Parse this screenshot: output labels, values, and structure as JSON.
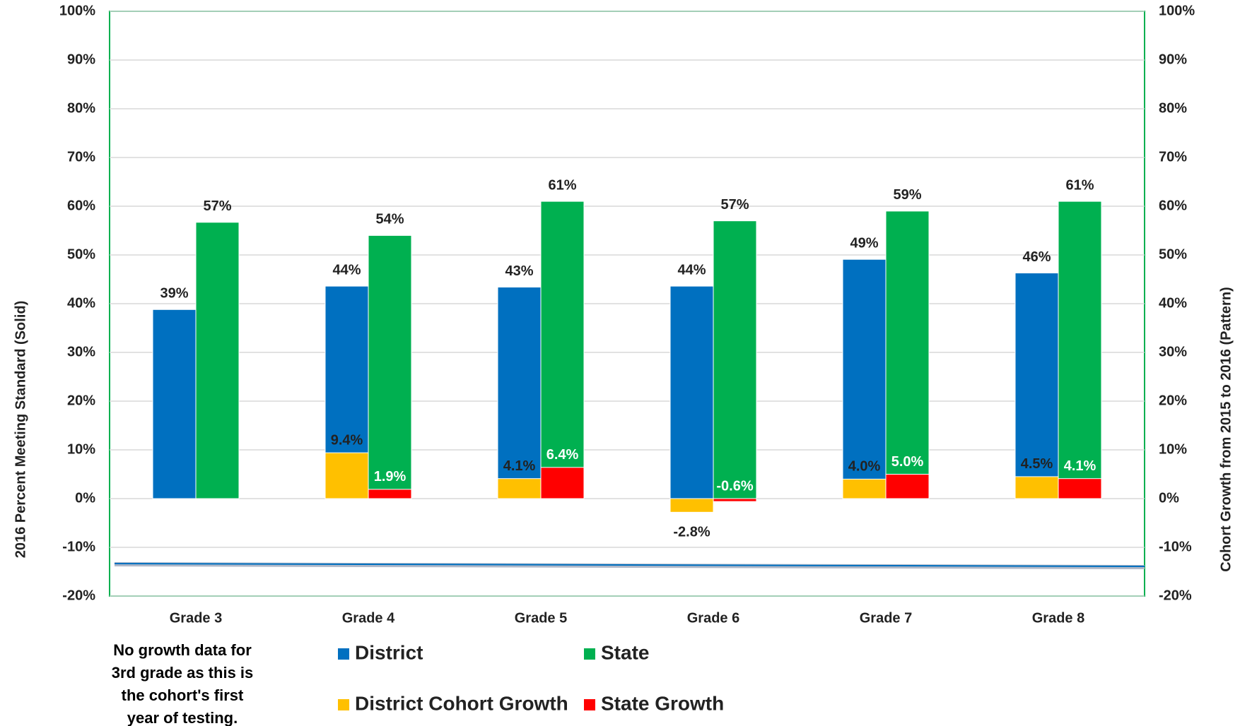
{
  "chart_data": {
    "type": "bar",
    "categories": [
      "Grade 3",
      "Grade 4",
      "Grade 5",
      "Grade 6",
      "Grade 7",
      "Grade 8"
    ],
    "series": [
      {
        "name": "District",
        "color": "#0070c0",
        "values": [
          38.8,
          43.6,
          43.4,
          43.6,
          49.1,
          46.3
        ],
        "value_labels": [
          "39%",
          "44%",
          "43%",
          "44%",
          "49%",
          "46%"
        ]
      },
      {
        "name": "State",
        "color": "#00b050",
        "values": [
          56.7,
          54,
          61,
          57,
          59,
          61
        ],
        "value_labels": [
          "57%",
          "54%",
          "61%",
          "57%",
          "59%",
          "61%"
        ]
      },
      {
        "name": "District Cohort Growth",
        "color": "#ffc000",
        "axis": "y2",
        "values": [
          null,
          9.4,
          4.1,
          -2.8,
          4.0,
          4.5
        ],
        "value_labels": [
          null,
          "9.4%",
          "4.1%",
          "-2.8%",
          "4.0%",
          "4.5%"
        ]
      },
      {
        "name": "State Growth",
        "color": "#ff0000",
        "axis": "y2",
        "values": [
          null,
          1.9,
          6.4,
          -0.6,
          5.0,
          4.1
        ],
        "value_labels": [
          null,
          "1.9%",
          "6.4%",
          "-0.6%",
          "5.0%",
          "4.1%"
        ]
      }
    ],
    "ylabel": "2016 Percent Meeting Standard (Solid)",
    "y2label": "Cohort Growth from 2015 to 2016 (Pattern)",
    "ylim": [
      -20,
      100
    ],
    "yticks": [
      {
        "value": -20,
        "label": "-20%"
      },
      {
        "value": -10,
        "label": "-10%"
      },
      {
        "value": 0,
        "label": "0%"
      },
      {
        "value": 10,
        "label": "10%"
      },
      {
        "value": 20,
        "label": "20%"
      },
      {
        "value": 30,
        "label": "30%"
      },
      {
        "value": 40,
        "label": "40%"
      },
      {
        "value": 50,
        "label": "50%"
      },
      {
        "value": 60,
        "label": "60%"
      },
      {
        "value": 70,
        "label": "70%"
      },
      {
        "value": 80,
        "label": "80%"
      },
      {
        "value": 90,
        "label": "90%"
      },
      {
        "value": 100,
        "label": "100%"
      }
    ],
    "y2lim": [
      -20,
      100
    ],
    "y2ticks": [
      {
        "value": -20,
        "label": "-20%"
      },
      {
        "value": -10,
        "label": "-10%"
      },
      {
        "value": 0,
        "label": "0%"
      },
      {
        "value": 10,
        "label": "10%"
      },
      {
        "value": 20,
        "label": "20%"
      },
      {
        "value": 30,
        "label": "30%"
      },
      {
        "value": 40,
        "label": "40%"
      },
      {
        "value": 50,
        "label": "50%"
      },
      {
        "value": 60,
        "label": "60%"
      },
      {
        "value": 70,
        "label": "70%"
      },
      {
        "value": 80,
        "label": "80%"
      },
      {
        "value": 90,
        "label": "90%"
      },
      {
        "value": 100,
        "label": "100%"
      }
    ],
    "grid": true,
    "annotation": [
      "No growth data for",
      "3rd grade as this is",
      "the cohort's first",
      "year of testing."
    ]
  }
}
